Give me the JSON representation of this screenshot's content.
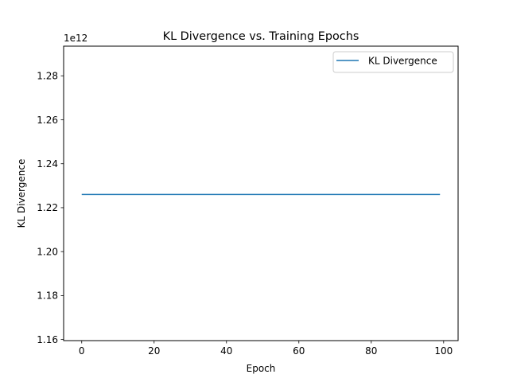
{
  "chart_data": {
    "type": "line",
    "title": "KL Divergence vs. Training Epochs",
    "xlabel": "Epoch",
    "ylabel": "KL Divergence",
    "offset_text": "1e12",
    "xlim": [
      -5,
      104
    ],
    "ylim": [
      1.1595,
      1.2935
    ],
    "x_ticks": [
      0,
      20,
      40,
      60,
      80,
      100
    ],
    "y_ticks": [
      1.16,
      1.18,
      1.2,
      1.22,
      1.24,
      1.26,
      1.28
    ],
    "x_tick_labels": [
      "0",
      "20",
      "40",
      "60",
      "80",
      "100"
    ],
    "y_tick_labels": [
      "1.16",
      "1.18",
      "1.20",
      "1.22",
      "1.24",
      "1.26",
      "1.28"
    ],
    "grid": false,
    "legend_position": "top-right",
    "series": [
      {
        "name": "KL Divergence",
        "color": "#1f77b4",
        "x": [
          0,
          99
        ],
        "y": [
          1.226,
          1.226
        ]
      }
    ]
  }
}
